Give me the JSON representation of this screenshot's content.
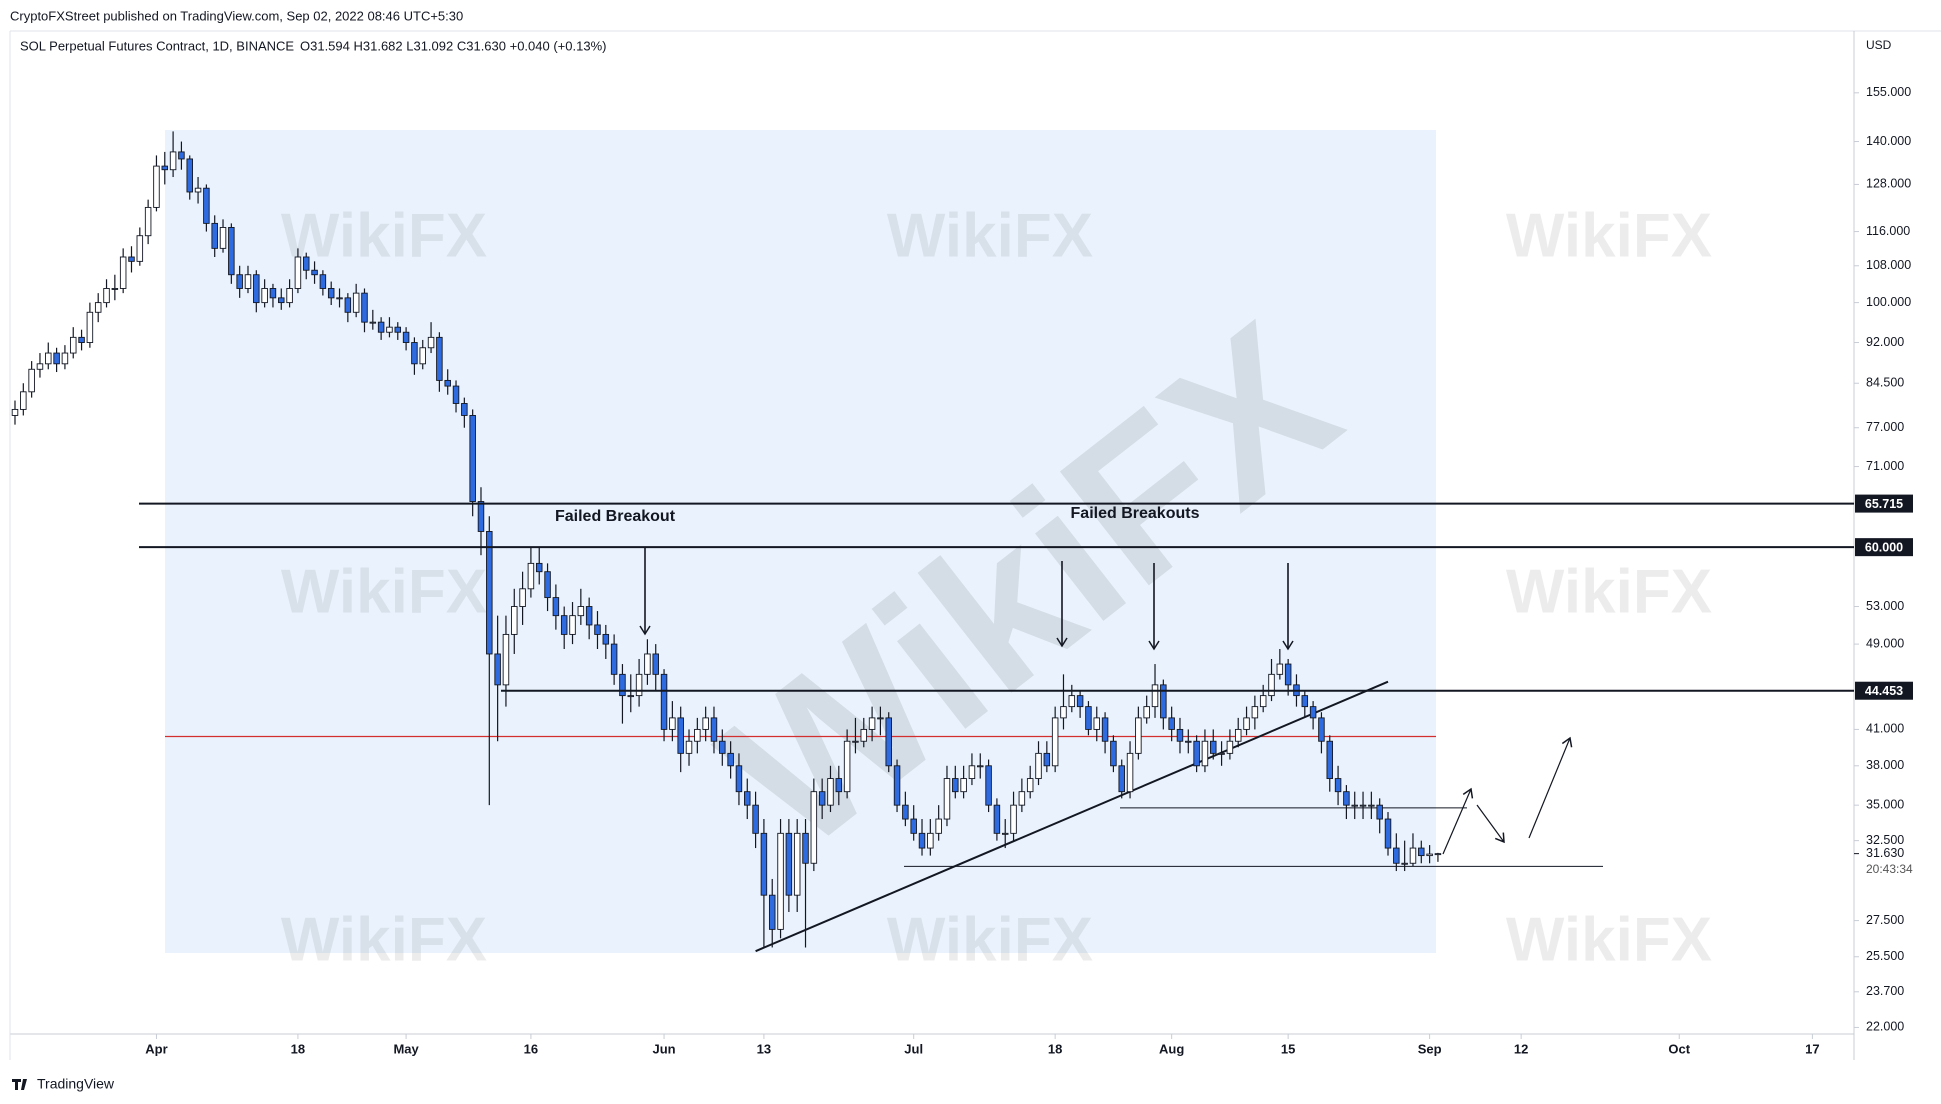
{
  "chart_data": {
    "type": "candlestick",
    "publisher": "CryptoFXStreet published on TradingView.com, Sep 02, 2022 08:46 UTC+5:30",
    "title": "SOL Perpetual Futures Contract, 1D, BINANCE",
    "subtitle": "O31.594 H31.682 L31.092 C31.630 +0.040 (+0.13%)",
    "currency": "USD",
    "brand": "TradingView",
    "watermark": "WikiFX",
    "annotations": [
      "Failed Breakout",
      "Failed Breakouts"
    ],
    "countdown": "20:43:34",
    "last_price": {
      "value": 31.63,
      "label": "31.630"
    },
    "up_color": "#ffffff",
    "down_color": "#2f6be0",
    "wick_color": "#131722",
    "ylog": true,
    "grid": false,
    "ylim": [
      21.7,
      176
    ],
    "xlim": [
      -0.6,
      221
    ],
    "yticks": [
      {
        "value": 155,
        "label": "155.000"
      },
      {
        "value": 140,
        "label": "140.000"
      },
      {
        "value": 128,
        "label": "128.000"
      },
      {
        "value": 116,
        "label": "116.000"
      },
      {
        "value": 108,
        "label": "108.000"
      },
      {
        "value": 100,
        "label": "100.000"
      },
      {
        "value": 92,
        "label": "92.000"
      },
      {
        "value": 84.5,
        "label": "84.500"
      },
      {
        "value": 77,
        "label": "77.000"
      },
      {
        "value": 71,
        "label": "71.000"
      },
      {
        "value": 53,
        "label": "53.000"
      },
      {
        "value": 49,
        "label": "49.000"
      },
      {
        "value": 41,
        "label": "41.000"
      },
      {
        "value": 38,
        "label": "38.000"
      },
      {
        "value": 35,
        "label": "35.000"
      },
      {
        "value": 32.5,
        "label": "32.500"
      },
      {
        "value": 27.5,
        "label": "27.500"
      },
      {
        "value": 25.5,
        "label": "25.500"
      },
      {
        "value": 23.7,
        "label": "23.700"
      },
      {
        "value": 22,
        "label": "22.000"
      }
    ],
    "xticks": [
      {
        "value": 17,
        "label": "Apr"
      },
      {
        "value": 34,
        "label": "18"
      },
      {
        "value": 47,
        "label": "May"
      },
      {
        "value": 62,
        "label": "16"
      },
      {
        "value": 78,
        "label": "Jun"
      },
      {
        "value": 90,
        "label": "13"
      },
      {
        "value": 108,
        "label": "Jul"
      },
      {
        "value": 125,
        "label": "18"
      },
      {
        "value": 139,
        "label": "Aug"
      },
      {
        "value": 153,
        "label": "15"
      },
      {
        "value": 170,
        "label": "Sep"
      },
      {
        "value": 181,
        "label": "12"
      },
      {
        "value": 200,
        "label": "Oct"
      },
      {
        "value": 216,
        "label": "17"
      }
    ],
    "levels": [
      {
        "value": 65.715,
        "label": "65.715"
      },
      {
        "value": 60,
        "label": "60.000"
      },
      {
        "value": 44.453,
        "label": "44.453"
      }
    ],
    "poc_line": 40.4,
    "poc_color": "#d32f2f",
    "support_levels": [
      34.8,
      30.8
    ],
    "trendline": {
      "x": [
        89,
        165
      ],
      "y": [
        25.8,
        45.3
      ]
    },
    "ohlc": [
      [
        79,
        81.5,
        77.5,
        80
      ],
      [
        80,
        84.5,
        79,
        83
      ],
      [
        83,
        88.5,
        82,
        87
      ],
      [
        87,
        90,
        85.5,
        88
      ],
      [
        88,
        92,
        87,
        90
      ],
      [
        90,
        91,
        86.5,
        88
      ],
      [
        88,
        91.5,
        87,
        90
      ],
      [
        90,
        95,
        89,
        93
      ],
      [
        93,
        94.5,
        90.5,
        92
      ],
      [
        92,
        100,
        91,
        98
      ],
      [
        98,
        102,
        96,
        100
      ],
      [
        100,
        105,
        99,
        103
      ],
      [
        103,
        106,
        100.5,
        103
      ],
      [
        103,
        112,
        102,
        110
      ],
      [
        110,
        112.5,
        106.5,
        109
      ],
      [
        109,
        117,
        108,
        115
      ],
      [
        115,
        124,
        113,
        122
      ],
      [
        122,
        136,
        121,
        133
      ],
      [
        133,
        137,
        128,
        132
      ],
      [
        132,
        143,
        130,
        137
      ],
      [
        137,
        140,
        132,
        135
      ],
      [
        135,
        136,
        124,
        126
      ],
      [
        126,
        130,
        123,
        127
      ],
      [
        127,
        128,
        116,
        118
      ],
      [
        118,
        120,
        110,
        112
      ],
      [
        112,
        119,
        111,
        117
      ],
      [
        117,
        118,
        104,
        106
      ],
      [
        106,
        108,
        101,
        103
      ],
      [
        103,
        108,
        102,
        106
      ],
      [
        106,
        107,
        98,
        100
      ],
      [
        100,
        105,
        99,
        103
      ],
      [
        103,
        104,
        99,
        101
      ],
      [
        101,
        103,
        98.5,
        100
      ],
      [
        100,
        105,
        99,
        103
      ],
      [
        103,
        112,
        102,
        110
      ],
      [
        110,
        111,
        105,
        107
      ],
      [
        107,
        109,
        104,
        106
      ],
      [
        106,
        107,
        101.5,
        103
      ],
      [
        103,
        104.5,
        99.5,
        101
      ],
      [
        101,
        103,
        99,
        101
      ],
      [
        101,
        102,
        96,
        98
      ],
      [
        98,
        104,
        97,
        102
      ],
      [
        102,
        103,
        94,
        96
      ],
      [
        96,
        98.5,
        94.5,
        96
      ],
      [
        96,
        97,
        92.5,
        94
      ],
      [
        94,
        97,
        93,
        95
      ],
      [
        95,
        96,
        92.5,
        94
      ],
      [
        94,
        95,
        90.5,
        92
      ],
      [
        92,
        93,
        86,
        88
      ],
      [
        88,
        92.5,
        87,
        91
      ],
      [
        91,
        96,
        90,
        93
      ],
      [
        93,
        94,
        83,
        85
      ],
      [
        85,
        87,
        82.5,
        84
      ],
      [
        84,
        85,
        79.5,
        81
      ],
      [
        81,
        82,
        77,
        79
      ],
      [
        79,
        80,
        64,
        66
      ],
      [
        66,
        68,
        59,
        62
      ],
      [
        62,
        64,
        35,
        48
      ],
      [
        48,
        52,
        40,
        45
      ],
      [
        45,
        52,
        43,
        50
      ],
      [
        50,
        55,
        48,
        53
      ],
      [
        53,
        57,
        51,
        55
      ],
      [
        55,
        60,
        54,
        58
      ],
      [
        58,
        60,
        55.5,
        57
      ],
      [
        57,
        58,
        52.5,
        54
      ],
      [
        54,
        55.5,
        50.5,
        52
      ],
      [
        52,
        53,
        48.5,
        50
      ],
      [
        50,
        53.5,
        49,
        52
      ],
      [
        52,
        55,
        51,
        53
      ],
      [
        53,
        54,
        49.5,
        51
      ],
      [
        51,
        52.5,
        48.5,
        50
      ],
      [
        50,
        51,
        47.5,
        49
      ],
      [
        49,
        50,
        45,
        46
      ],
      [
        46,
        47,
        41.5,
        44
      ],
      [
        44,
        46,
        42.5,
        44
      ],
      [
        44,
        47.5,
        43,
        46
      ],
      [
        46,
        49.5,
        45,
        48
      ],
      [
        48,
        49,
        44.5,
        46
      ],
      [
        46,
        46.5,
        40,
        41
      ],
      [
        41,
        43.5,
        40,
        42
      ],
      [
        42,
        43,
        37.5,
        39
      ],
      [
        39,
        41,
        38,
        40
      ],
      [
        40,
        42,
        39,
        41
      ],
      [
        41,
        43,
        40,
        42
      ],
      [
        42,
        43,
        39,
        40
      ],
      [
        40,
        41,
        38,
        39
      ],
      [
        39,
        40,
        37,
        38
      ],
      [
        38,
        39,
        35,
        36
      ],
      [
        36,
        37,
        34,
        35
      ],
      [
        35,
        36,
        32,
        33
      ],
      [
        33,
        34,
        26,
        29
      ],
      [
        29,
        30,
        26,
        27
      ],
      [
        27,
        34,
        26.5,
        33
      ],
      [
        33,
        34,
        28,
        29
      ],
      [
        29,
        34,
        28,
        33
      ],
      [
        33,
        34,
        26,
        31
      ],
      [
        31,
        37,
        30.5,
        36
      ],
      [
        36,
        37,
        34,
        35
      ],
      [
        35,
        38,
        34.5,
        37
      ],
      [
        37,
        38,
        35,
        36
      ],
      [
        36,
        41,
        35.5,
        40
      ],
      [
        40,
        42,
        39,
        40
      ],
      [
        40,
        42,
        39.5,
        41
      ],
      [
        41,
        43,
        40,
        42
      ],
      [
        42,
        43,
        40.5,
        42
      ],
      [
        42,
        42.5,
        37.5,
        38
      ],
      [
        38,
        38.5,
        34.5,
        35
      ],
      [
        35,
        36,
        33.5,
        34
      ],
      [
        34,
        35,
        32.5,
        33
      ],
      [
        33,
        34,
        31.5,
        32
      ],
      [
        32,
        34,
        31.5,
        33
      ],
      [
        33,
        35,
        32.5,
        34
      ],
      [
        34,
        38,
        33.5,
        37
      ],
      [
        37,
        38,
        35.5,
        36
      ],
      [
        36,
        38,
        35.5,
        37
      ],
      [
        37,
        39,
        36.5,
        38
      ],
      [
        38,
        39,
        37,
        38
      ],
      [
        38,
        38.5,
        34.5,
        35
      ],
      [
        35,
        35.5,
        32.5,
        33
      ],
      [
        33,
        34,
        32,
        33
      ],
      [
        33,
        36,
        32.5,
        35
      ],
      [
        35,
        37,
        34.5,
        36
      ],
      [
        36,
        38,
        35.5,
        37
      ],
      [
        37,
        40,
        36.5,
        39
      ],
      [
        39,
        40,
        37.5,
        38
      ],
      [
        38,
        43,
        37.5,
        42
      ],
      [
        42,
        46,
        41,
        43
      ],
      [
        43,
        45,
        42.5,
        44
      ],
      [
        44,
        44.5,
        42,
        43
      ],
      [
        43,
        43.5,
        40.5,
        41
      ],
      [
        41,
        43,
        40,
        42
      ],
      [
        42,
        42.5,
        39,
        40
      ],
      [
        40,
        40.5,
        37.5,
        38
      ],
      [
        38,
        38.5,
        35.5,
        36
      ],
      [
        36,
        40,
        35.5,
        39
      ],
      [
        39,
        43,
        38.5,
        42
      ],
      [
        42,
        44,
        41.5,
        43
      ],
      [
        43,
        47,
        42,
        45
      ],
      [
        45,
        45.5,
        41,
        42
      ],
      [
        42,
        43,
        40,
        41
      ],
      [
        41,
        42,
        39,
        40
      ],
      [
        40,
        41,
        39,
        40
      ],
      [
        40,
        40.5,
        37.5,
        38
      ],
      [
        38,
        41,
        37.5,
        40
      ],
      [
        40,
        41,
        38.5,
        39
      ],
      [
        39,
        40,
        38,
        39
      ],
      [
        39,
        41,
        38.5,
        40
      ],
      [
        40,
        42,
        39.5,
        41
      ],
      [
        41,
        43,
        40.5,
        42
      ],
      [
        42,
        44,
        41,
        43
      ],
      [
        43,
        45,
        42.5,
        44
      ],
      [
        44,
        47.5,
        43.5,
        46
      ],
      [
        46,
        48.5,
        45.5,
        47
      ],
      [
        47,
        47.5,
        44,
        45
      ],
      [
        45,
        46,
        43,
        44
      ],
      [
        44,
        44.5,
        42,
        43
      ],
      [
        43,
        43.5,
        41,
        42
      ],
      [
        42,
        42.5,
        39,
        40
      ],
      [
        40,
        40.5,
        36,
        37
      ],
      [
        37,
        38,
        35,
        36
      ],
      [
        36,
        36.5,
        34,
        35
      ],
      [
        35,
        36,
        34,
        35
      ],
      [
        35,
        36,
        34,
        35
      ],
      [
        35,
        36,
        34,
        35
      ],
      [
        35,
        35.5,
        33,
        34
      ],
      [
        34,
        34.5,
        31.5,
        32
      ],
      [
        32,
        33,
        30.5,
        31
      ],
      [
        31,
        32.5,
        30.5,
        31
      ],
      [
        31,
        33,
        30.8,
        32
      ],
      [
        32,
        32.5,
        31,
        31.5
      ],
      [
        31.5,
        32.2,
        31,
        31.6
      ],
      [
        31.594,
        31.682,
        31.092,
        31.63
      ]
    ]
  }
}
